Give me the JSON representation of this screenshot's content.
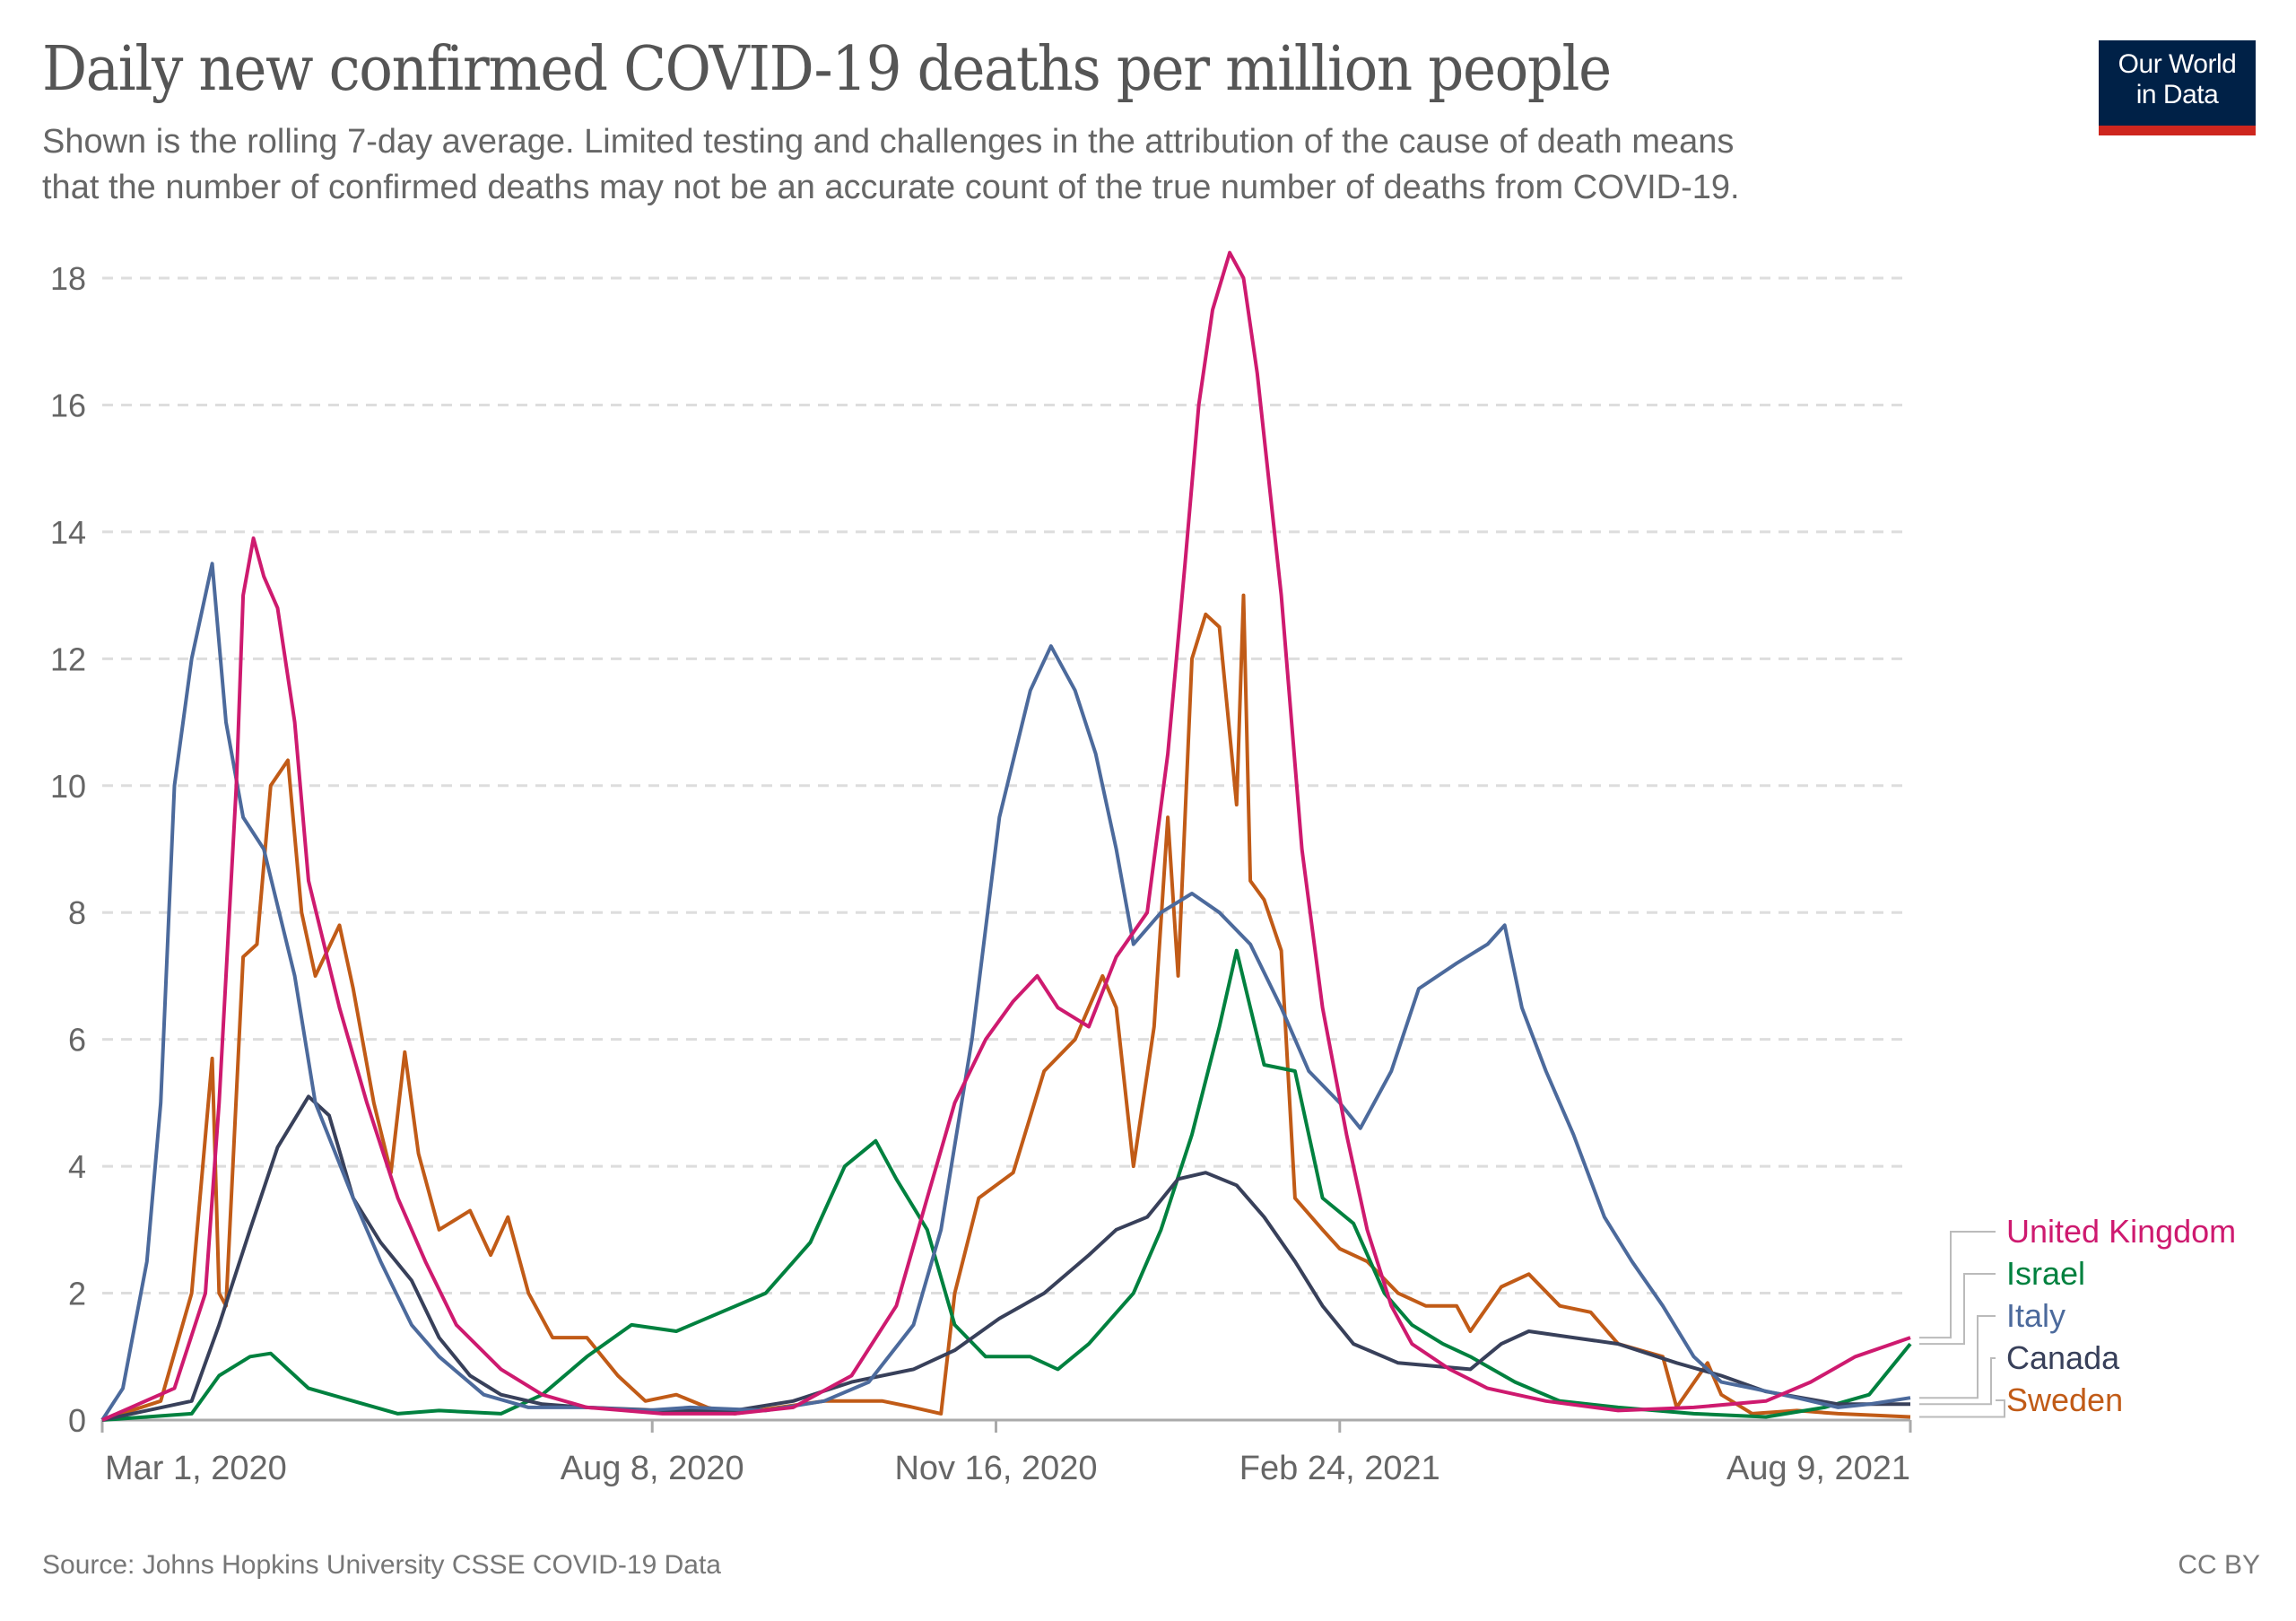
{
  "header": {
    "title": "Daily new confirmed COVID-19 deaths per million people",
    "subtitle": "Shown is the rolling 7-day average. Limited testing and challenges in the attribution of the cause of death means\nthat the number of confirmed deaths may not be an accurate count of the true number of deaths from COVID-19.",
    "logo_line1": "Our World",
    "logo_line2": "in Data"
  },
  "footer": {
    "source": "Source: Johns Hopkins University CSSE COVID-19 Data",
    "license": "CC BY"
  },
  "colors": {
    "United Kingdom": "#ce1a6f",
    "Israel": "#00813f",
    "Italy": "#4c6a9c",
    "Canada": "#38405a",
    "Sweden": "#c15b17",
    "grid": "#dddddd",
    "axis": "#aaaaaa",
    "text": "#666666",
    "logo_bg": "#002147",
    "logo_bar": "#ce261e"
  },
  "chart_data": {
    "type": "line",
    "title": "Daily new confirmed COVID-19 deaths per million people",
    "xlabel": "",
    "ylabel": "",
    "x_unit": "days since Mar 1, 2020",
    "x_range_dates": [
      "Mar 1, 2020",
      "Aug 9, 2021"
    ],
    "xlim": [
      0,
      526
    ],
    "ylim": [
      0,
      18
    ],
    "yticks": [
      0,
      2,
      4,
      6,
      8,
      10,
      12,
      14,
      16,
      18
    ],
    "xticks": [
      {
        "day": 0,
        "label": "Mar 1, 2020"
      },
      {
        "day": 160,
        "label": "Aug 8, 2020"
      },
      {
        "day": 260,
        "label": "Nov 16, 2020"
      },
      {
        "day": 360,
        "label": "Feb 24, 2021"
      },
      {
        "day": 526,
        "label": "Aug 9, 2021"
      }
    ],
    "grid": true,
    "legend_position": "right-end-labels",
    "series": [
      {
        "name": "United Kingdom",
        "points": [
          [
            0,
            0
          ],
          [
            21,
            0.5
          ],
          [
            30,
            2
          ],
          [
            34,
            5
          ],
          [
            39,
            10
          ],
          [
            41,
            13
          ],
          [
            44,
            13.9
          ],
          [
            47,
            13.3
          ],
          [
            51,
            12.8
          ],
          [
            56,
            11
          ],
          [
            60,
            8.5
          ],
          [
            69,
            6.5
          ],
          [
            77,
            5
          ],
          [
            86,
            3.5
          ],
          [
            94,
            2.5
          ],
          [
            103,
            1.5
          ],
          [
            116,
            0.8
          ],
          [
            128,
            0.4
          ],
          [
            141,
            0.2
          ],
          [
            163,
            0.1
          ],
          [
            184,
            0.1
          ],
          [
            201,
            0.2
          ],
          [
            218,
            0.7
          ],
          [
            231,
            1.8
          ],
          [
            240,
            3.5
          ],
          [
            248,
            5
          ],
          [
            257,
            6
          ],
          [
            265,
            6.6
          ],
          [
            272,
            7
          ],
          [
            278,
            6.5
          ],
          [
            287,
            6.2
          ],
          [
            295,
            7.3
          ],
          [
            304,
            8
          ],
          [
            310,
            10.5
          ],
          [
            315,
            13.5
          ],
          [
            319,
            16
          ],
          [
            323,
            17.5
          ],
          [
            328,
            18.4
          ],
          [
            332,
            18
          ],
          [
            336,
            16.5
          ],
          [
            343,
            13
          ],
          [
            349,
            9
          ],
          [
            355,
            6.5
          ],
          [
            362,
            4.5
          ],
          [
            368,
            3
          ],
          [
            375,
            1.8
          ],
          [
            381,
            1.2
          ],
          [
            392,
            0.8
          ],
          [
            403,
            0.5
          ],
          [
            420,
            0.3
          ],
          [
            441,
            0.15
          ],
          [
            463,
            0.2
          ],
          [
            484,
            0.3
          ],
          [
            497,
            0.6
          ],
          [
            510,
            1.0
          ],
          [
            526,
            1.3
          ]
        ]
      },
      {
        "name": "Israel",
        "points": [
          [
            0,
            0
          ],
          [
            26,
            0.1
          ],
          [
            34,
            0.7
          ],
          [
            43,
            1
          ],
          [
            49,
            1.05
          ],
          [
            54,
            0.8
          ],
          [
            60,
            0.5
          ],
          [
            73,
            0.3
          ],
          [
            86,
            0.1
          ],
          [
            98,
            0.15
          ],
          [
            116,
            0.1
          ],
          [
            128,
            0.4
          ],
          [
            141,
            1
          ],
          [
            154,
            1.5
          ],
          [
            167,
            1.4
          ],
          [
            180,
            1.7
          ],
          [
            193,
            2
          ],
          [
            206,
            2.8
          ],
          [
            216,
            4
          ],
          [
            225,
            4.4
          ],
          [
            231,
            3.8
          ],
          [
            240,
            3
          ],
          [
            248,
            1.5
          ],
          [
            257,
            1
          ],
          [
            270,
            1
          ],
          [
            278,
            0.8
          ],
          [
            287,
            1.2
          ],
          [
            300,
            2
          ],
          [
            308,
            3
          ],
          [
            317,
            4.5
          ],
          [
            325,
            6.2
          ],
          [
            330,
            7.4
          ],
          [
            334,
            6.5
          ],
          [
            338,
            5.6
          ],
          [
            347,
            5.5
          ],
          [
            355,
            3.5
          ],
          [
            364,
            3.1
          ],
          [
            373,
            2
          ],
          [
            381,
            1.5
          ],
          [
            390,
            1.2
          ],
          [
            398,
            1.0
          ],
          [
            411,
            0.6
          ],
          [
            424,
            0.3
          ],
          [
            441,
            0.2
          ],
          [
            463,
            0.1
          ],
          [
            484,
            0.05
          ],
          [
            501,
            0.2
          ],
          [
            514,
            0.4
          ],
          [
            526,
            1.2
          ]
        ]
      },
      {
        "name": "Italy",
        "points": [
          [
            0,
            0
          ],
          [
            6,
            0.5
          ],
          [
            13,
            2.5
          ],
          [
            17,
            5
          ],
          [
            21,
            10
          ],
          [
            26,
            12
          ],
          [
            32,
            13.5
          ],
          [
            36,
            11
          ],
          [
            41,
            9.5
          ],
          [
            47,
            9
          ],
          [
            56,
            7
          ],
          [
            62,
            5
          ],
          [
            73,
            3.5
          ],
          [
            81,
            2.5
          ],
          [
            90,
            1.5
          ],
          [
            98,
            1
          ],
          [
            111,
            0.4
          ],
          [
            124,
            0.2
          ],
          [
            141,
            0.2
          ],
          [
            158,
            0.15
          ],
          [
            171,
            0.2
          ],
          [
            193,
            0.15
          ],
          [
            210,
            0.3
          ],
          [
            223,
            0.6
          ],
          [
            236,
            1.5
          ],
          [
            244,
            3
          ],
          [
            253,
            6
          ],
          [
            261,
            9.5
          ],
          [
            270,
            11.5
          ],
          [
            276,
            12.2
          ],
          [
            283,
            11.5
          ],
          [
            289,
            10.5
          ],
          [
            295,
            9
          ],
          [
            300,
            7.5
          ],
          [
            308,
            8
          ],
          [
            317,
            8.3
          ],
          [
            325,
            8
          ],
          [
            334,
            7.5
          ],
          [
            343,
            6.5
          ],
          [
            351,
            5.5
          ],
          [
            360,
            5
          ],
          [
            366,
            4.6
          ],
          [
            375,
            5.5
          ],
          [
            383,
            6.8
          ],
          [
            394,
            7.2
          ],
          [
            403,
            7.5
          ],
          [
            408,
            7.8
          ],
          [
            413,
            6.5
          ],
          [
            420,
            5.5
          ],
          [
            428,
            4.5
          ],
          [
            437,
            3.2
          ],
          [
            445,
            2.5
          ],
          [
            454,
            1.8
          ],
          [
            463,
            1.0
          ],
          [
            471,
            0.6
          ],
          [
            480,
            0.5
          ],
          [
            493,
            0.35
          ],
          [
            505,
            0.2
          ],
          [
            514,
            0.25
          ],
          [
            526,
            0.35
          ]
        ]
      },
      {
        "name": "Canada",
        "points": [
          [
            0,
            0
          ],
          [
            26,
            0.3
          ],
          [
            34,
            1.5
          ],
          [
            43,
            3
          ],
          [
            51,
            4.3
          ],
          [
            60,
            5.1
          ],
          [
            66,
            4.8
          ],
          [
            73,
            3.5
          ],
          [
            81,
            2.8
          ],
          [
            90,
            2.2
          ],
          [
            98,
            1.3
          ],
          [
            107,
            0.7
          ],
          [
            116,
            0.4
          ],
          [
            128,
            0.25
          ],
          [
            141,
            0.2
          ],
          [
            163,
            0.15
          ],
          [
            184,
            0.15
          ],
          [
            201,
            0.3
          ],
          [
            218,
            0.6
          ],
          [
            236,
            0.8
          ],
          [
            248,
            1.1
          ],
          [
            261,
            1.6
          ],
          [
            274,
            2
          ],
          [
            287,
            2.6
          ],
          [
            295,
            3
          ],
          [
            304,
            3.2
          ],
          [
            313,
            3.8
          ],
          [
            321,
            3.9
          ],
          [
            330,
            3.7
          ],
          [
            338,
            3.2
          ],
          [
            347,
            2.5
          ],
          [
            355,
            1.8
          ],
          [
            364,
            1.2
          ],
          [
            377,
            0.9
          ],
          [
            398,
            0.8
          ],
          [
            407,
            1.2
          ],
          [
            415,
            1.4
          ],
          [
            428,
            1.3
          ],
          [
            441,
            1.2
          ],
          [
            458,
            0.9
          ],
          [
            471,
            0.7
          ],
          [
            484,
            0.45
          ],
          [
            505,
            0.25
          ],
          [
            526,
            0.25
          ]
        ]
      },
      {
        "name": "Sweden",
        "points": [
          [
            0,
            0
          ],
          [
            17,
            0.3
          ],
          [
            26,
            2
          ],
          [
            32,
            5.7
          ],
          [
            34,
            2
          ],
          [
            36,
            1.8
          ],
          [
            41,
            7.3
          ],
          [
            45,
            7.5
          ],
          [
            49,
            10
          ],
          [
            54,
            10.4
          ],
          [
            58,
            8
          ],
          [
            62,
            7
          ],
          [
            69,
            7.8
          ],
          [
            73,
            6.8
          ],
          [
            79,
            5
          ],
          [
            84,
            3.9
          ],
          [
            88,
            5.8
          ],
          [
            92,
            4.2
          ],
          [
            98,
            3
          ],
          [
            107,
            3.3
          ],
          [
            113,
            2.6
          ],
          [
            118,
            3.2
          ],
          [
            124,
            2
          ],
          [
            131,
            1.3
          ],
          [
            141,
            1.3
          ],
          [
            150,
            0.7
          ],
          [
            158,
            0.3
          ],
          [
            167,
            0.4
          ],
          [
            176,
            0.2
          ],
          [
            184,
            0.1
          ],
          [
            197,
            0.2
          ],
          [
            210,
            0.3
          ],
          [
            227,
            0.3
          ],
          [
            236,
            0.2
          ],
          [
            244,
            0.1
          ],
          [
            248,
            2
          ],
          [
            255,
            3.5
          ],
          [
            265,
            3.9
          ],
          [
            274,
            5.5
          ],
          [
            283,
            6
          ],
          [
            291,
            7
          ],
          [
            295,
            6.5
          ],
          [
            300,
            4
          ],
          [
            306,
            6.2
          ],
          [
            310,
            9.5
          ],
          [
            313,
            7
          ],
          [
            317,
            12
          ],
          [
            321,
            12.7
          ],
          [
            325,
            12.5
          ],
          [
            330,
            9.7
          ],
          [
            332,
            13
          ],
          [
            334,
            8.5
          ],
          [
            338,
            8.2
          ],
          [
            343,
            7.4
          ],
          [
            347,
            3.5
          ],
          [
            355,
            3
          ],
          [
            360,
            2.7
          ],
          [
            368,
            2.5
          ],
          [
            377,
            2
          ],
          [
            385,
            1.8
          ],
          [
            394,
            1.8
          ],
          [
            398,
            1.4
          ],
          [
            407,
            2.1
          ],
          [
            415,
            2.3
          ],
          [
            424,
            1.8
          ],
          [
            433,
            1.7
          ],
          [
            441,
            1.2
          ],
          [
            454,
            1.0
          ],
          [
            458,
            0.2
          ],
          [
            467,
            0.9
          ],
          [
            471,
            0.4
          ],
          [
            480,
            0.1
          ],
          [
            493,
            0.15
          ],
          [
            505,
            0.1
          ],
          [
            526,
            0.05
          ]
        ]
      }
    ],
    "legend_order": [
      "United Kingdom",
      "Israel",
      "Italy",
      "Canada",
      "Sweden"
    ]
  }
}
